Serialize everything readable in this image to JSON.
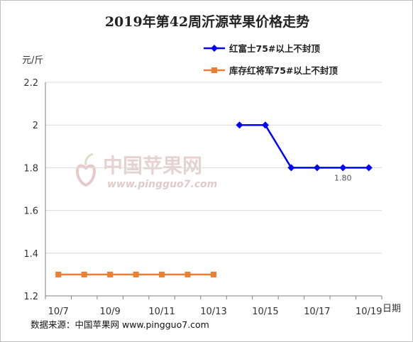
{
  "chart_data": {
    "type": "line",
    "title": "2019年第42周沂源苹果价格走势",
    "ylabel": "元/斤",
    "xlabel": "日期",
    "ylim": [
      1.2,
      2.2
    ],
    "y_ticks": [
      "1.2",
      "1.4",
      "1.6",
      "1.8",
      "2",
      "2.2"
    ],
    "categories": [
      "10/7",
      "10/8",
      "10/9",
      "10/10",
      "10/11",
      "10/12",
      "10/13",
      "10/14",
      "10/15",
      "10/16",
      "10/17",
      "10/18",
      "10/19"
    ],
    "x_tick_labels": [
      "10/7",
      "10/9",
      "10/11",
      "10/13",
      "10/15",
      "10/17",
      "10/19"
    ],
    "legend_position": "top-right",
    "grid": "horizontal",
    "series": [
      {
        "name": "红富士75#以上不封顶",
        "color": "#0000ff",
        "marker": "diamond",
        "values": [
          null,
          null,
          null,
          null,
          null,
          null,
          null,
          2.0,
          2.0,
          1.8,
          1.8,
          1.8,
          1.8
        ],
        "data_label": {
          "text": "1.80"
        }
      },
      {
        "name": "库存红将军75#以上不封顶",
        "color": "#ed7d31",
        "marker": "square",
        "values": [
          1.3,
          1.3,
          1.3,
          1.3,
          1.3,
          1.3,
          1.3,
          null,
          null,
          null,
          null,
          null,
          null
        ]
      }
    ]
  },
  "watermark": {
    "logo": "中国苹果网",
    "url": "www.pingguo7.com"
  },
  "footer": {
    "source": "数据来源：中国苹果网 www.pingguo7.com"
  }
}
